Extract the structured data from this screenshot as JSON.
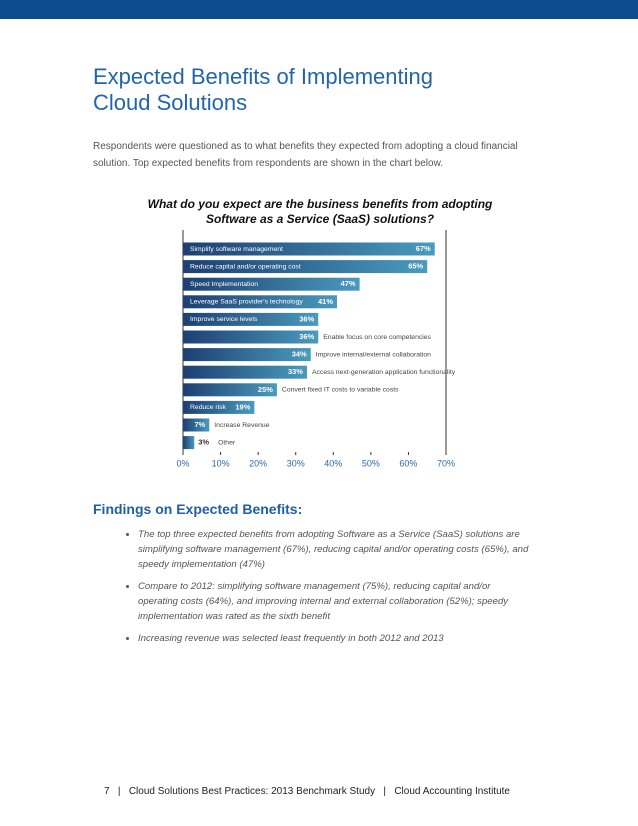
{
  "header": {
    "title": "Expected Benefits of Implementing Cloud Solutions",
    "intro": "Respondents were questioned as to what benefits they expected from adopting a cloud financial solution. Top expected benefits from respondents are shown in the chart below."
  },
  "chart_data": {
    "type": "bar",
    "orientation": "horizontal",
    "title": "What do you expect are the business benefits from adopting Software as a Service (SaaS) solutions?",
    "categories": [
      "Simplify software management",
      "Reduce capital and/or operating cost",
      "Speed Implementation",
      "Leverage SaaS provider's technology",
      "Improve service levels",
      "Enable focus on core competencies",
      "Improve internal/external collaboration",
      "Access next-generation application functionality",
      "Convert fixed IT costs to variable costs",
      "Reduce risk",
      "Increase Revenue",
      "Other"
    ],
    "values": [
      67,
      65,
      47,
      41,
      36,
      36,
      34,
      33,
      25,
      19,
      7,
      3
    ],
    "value_labels": [
      "67%",
      "65%",
      "47%",
      "41%",
      "36%",
      "36%",
      "34%",
      "33%",
      "25%",
      "19%",
      "7%",
      "3%"
    ],
    "color": [
      "#1d3f73",
      "#4a9bbd"
    ],
    "xlim": [
      0,
      70
    ],
    "xticks": [
      {
        "value": 0,
        "label": "0%"
      },
      {
        "value": 10,
        "label": "10%"
      },
      {
        "value": 20,
        "label": "20%"
      },
      {
        "value": 30,
        "label": "30%"
      },
      {
        "value": 40,
        "label": "40%"
      },
      {
        "value": 50,
        "label": "50%"
      },
      {
        "value": 60,
        "label": "60%"
      },
      {
        "value": 70,
        "label": "70%"
      }
    ]
  },
  "findings": {
    "heading": "Findings on Expected Benefits:",
    "bullets": [
      "The top three expected benefits from adopting Software as a Service (SaaS) solutions are simplifying software management (67%), reducing capital and/or operating costs (65%), and speedy implementation (47%)",
      "Compare to 2012: simplifying software management (75%), reducing capital and/or operating costs (64%), and improving internal and external collaboration (52%); speedy implementation was rated as the sixth benefit",
      "Increasing revenue was selected least frequently in both 2012 and 2013"
    ]
  },
  "footer": "7   |   Cloud Solutions Best Practices: 2013 Benchmark Study   |   Cloud Accounting Institute"
}
